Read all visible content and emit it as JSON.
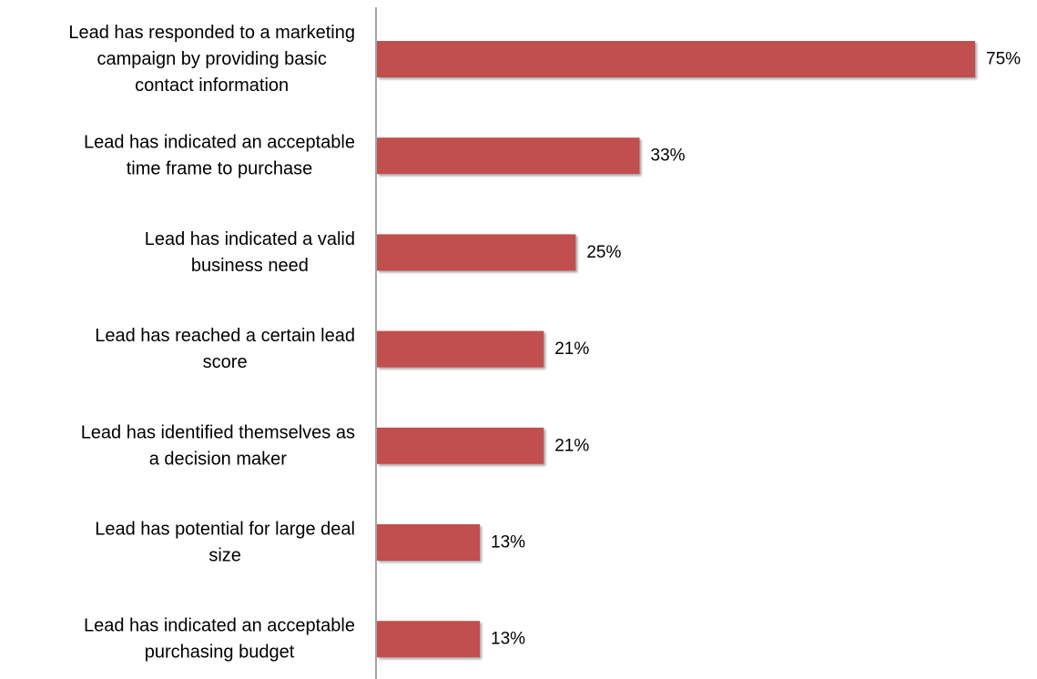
{
  "colors": {
    "bar": "#c0504d",
    "bar_shadow": "#bdbdbd",
    "axis": "#868686"
  },
  "chart_data": {
    "type": "bar",
    "orientation": "horizontal",
    "categories": [
      "Lead has responded to a marketing campaign by providing basic contact information",
      "Lead has indicated an acceptable time frame to purchase",
      "Lead has indicated a valid business need",
      "Lead has reached a certain lead score",
      "Lead has identified themselves as a decision maker",
      "Lead has potential for large deal size",
      "Lead has indicated an acceptable purchasing budget"
    ],
    "values": [
      75,
      33,
      25,
      21,
      21,
      13,
      13
    ],
    "data_labels": [
      "75%",
      "33%",
      "25%",
      "21%",
      "21%",
      "13%",
      "13%"
    ],
    "unit": "%",
    "xlim": [
      0,
      75
    ],
    "grid": false,
    "legend": "none",
    "title": "",
    "xlabel": "",
    "ylabel": ""
  }
}
